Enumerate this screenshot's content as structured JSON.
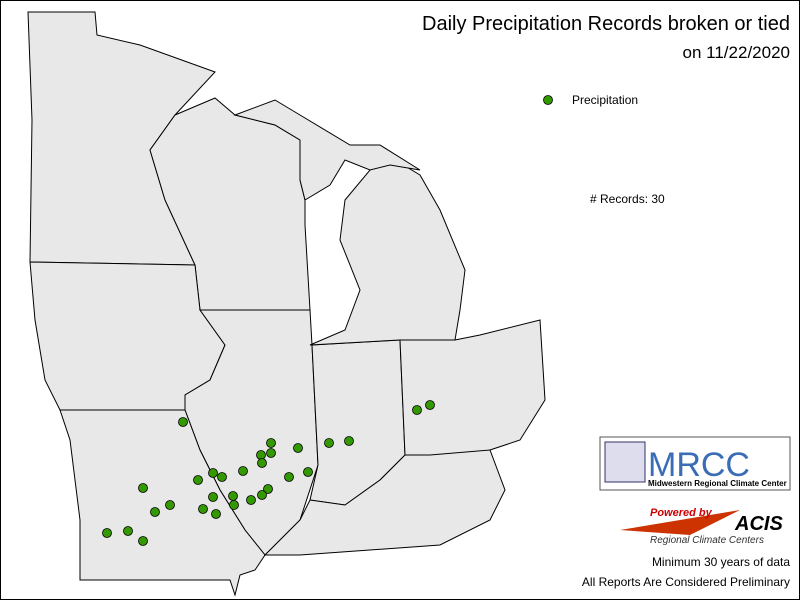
{
  "header": {
    "title": "Daily Precipitation Records broken or tied",
    "subtitle": "on 11/22/2020"
  },
  "legend": {
    "label": "Precipitation",
    "color": "#339900"
  },
  "summary": "# Records: 30",
  "logo": {
    "name": "MRCC",
    "full_name": "Midwestern Regional Climate Center"
  },
  "acis": {
    "powered": "Powered by",
    "name": "ACIS",
    "sub": "Regional Climate Centers"
  },
  "notes": [
    "Minimum 30 years of data",
    "All Reports Are Considered Preliminary"
  ]
}
